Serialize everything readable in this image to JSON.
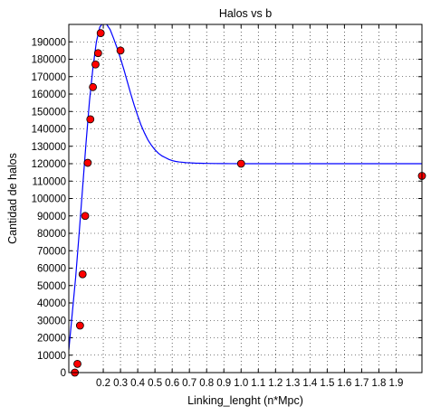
{
  "chart_data": {
    "type": "scatter",
    "title": "Halos vs b",
    "xlabel": "Linking_lenght (n*Mpc)",
    "ylabel": "Cantidad de halos",
    "xlim": [
      0.0,
      2.05
    ],
    "ylim": [
      0,
      200000
    ],
    "grid": true,
    "x_ticks": [
      0.2,
      0.3,
      0.4,
      0.5,
      0.6,
      0.7,
      0.8,
      0.9,
      1.0,
      1.1,
      1.2,
      1.3,
      1.4,
      1.5,
      1.6,
      1.7,
      1.8,
      1.9
    ],
    "x_tick_labels": [
      "0.2",
      "0.3",
      "0.4",
      "0.5",
      "0.6",
      "0.7",
      "0.8",
      "0.9",
      "1.0",
      "1.1",
      "1.2",
      "1.3",
      "1.4",
      "1.5",
      "1.6",
      "1.7",
      "1.8",
      "1.9"
    ],
    "y_ticks": [
      0,
      10000,
      20000,
      30000,
      40000,
      50000,
      60000,
      70000,
      80000,
      90000,
      100000,
      110000,
      120000,
      130000,
      140000,
      150000,
      160000,
      170000,
      180000,
      190000
    ],
    "y_tick_labels": [
      "0",
      "10000",
      "20000",
      "30000",
      "40000",
      "50000",
      "60000",
      "70000",
      "80000",
      "90000",
      "100000",
      "110000",
      "120000",
      "130000",
      "140000",
      "150000",
      "160000",
      "170000",
      "180000",
      "190000"
    ],
    "series": [
      {
        "kind": "points",
        "color": "#ff0000",
        "x": [
          0.035,
          0.05,
          0.065,
          0.08,
          0.095,
          0.11,
          0.125,
          0.14,
          0.155,
          0.17,
          0.185,
          0.3,
          1.0,
          2.05
        ],
        "y": [
          0,
          5000,
          27000,
          56500,
          90000,
          120500,
          145500,
          164000,
          177000,
          183500,
          195000,
          185000,
          120000,
          113000
        ]
      },
      {
        "kind": "fit-curve",
        "color": "#0000ff",
        "x": [
          0.0,
          0.02,
          0.04,
          0.06,
          0.08,
          0.1,
          0.12,
          0.14,
          0.16,
          0.18,
          0.2,
          0.22,
          0.24,
          0.26,
          0.28,
          0.3,
          0.32,
          0.34,
          0.36,
          0.38,
          0.4,
          0.42,
          0.44,
          0.46,
          0.48,
          0.5,
          0.52,
          0.54,
          0.56,
          0.58,
          0.6,
          0.62,
          0.64,
          0.66,
          0.68,
          0.7,
          0.72,
          0.74,
          0.76,
          0.78,
          0.8,
          0.85,
          0.9,
          0.95,
          1.0,
          1.2,
          1.4,
          1.6,
          1.8,
          2.05
        ],
        "y": [
          13000,
          34000,
          55000,
          80000,
          106000,
          132000,
          156000,
          175000,
          190000,
          198500,
          201000,
          200000,
          197000,
          192000,
          186500,
          180500,
          174000,
          167000,
          160000,
          153500,
          147500,
          142000,
          137500,
          133500,
          130500,
          128000,
          126000,
          124500,
          123500,
          122500,
          121800,
          121300,
          121000,
          120800,
          120600,
          120500,
          120400,
          120300,
          120250,
          120200,
          120150,
          120100,
          120050,
          120020,
          120000,
          120000,
          120000,
          120000,
          120000,
          120000
        ]
      }
    ]
  }
}
